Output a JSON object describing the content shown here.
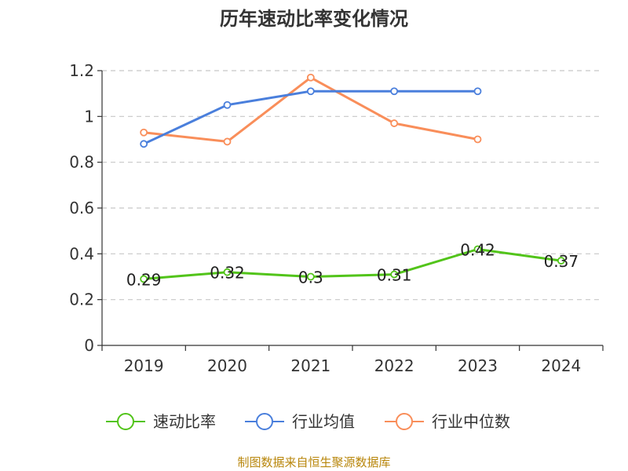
{
  "chart_data": {
    "type": "line",
    "title": "历年速动比率变化情况",
    "categories": [
      "2019",
      "2020",
      "2021",
      "2022",
      "2023",
      "2024"
    ],
    "ylim": [
      0,
      1.2
    ],
    "yticks": [
      "0",
      "0.2",
      "0.4",
      "0.6",
      "0.8",
      "1",
      "1.2"
    ],
    "grid": true,
    "legend_position": "bottom",
    "series": [
      {
        "name": "速动比率",
        "color": "#52c41a",
        "values": [
          0.29,
          0.32,
          0.3,
          0.31,
          0.42,
          0.37
        ],
        "labels": [
          "0.29",
          "0.32",
          "0.3",
          "0.31",
          "0.42",
          "0.37"
        ]
      },
      {
        "name": "行业均值",
        "color": "#4a7fdc",
        "values": [
          0.88,
          1.05,
          1.11,
          1.11,
          1.11,
          null
        ]
      },
      {
        "name": "行业中位数",
        "color": "#f98e5a",
        "values": [
          0.93,
          0.89,
          1.17,
          0.97,
          0.9,
          null
        ]
      }
    ]
  },
  "source_note": "制图数据来自恒生聚源数据库"
}
